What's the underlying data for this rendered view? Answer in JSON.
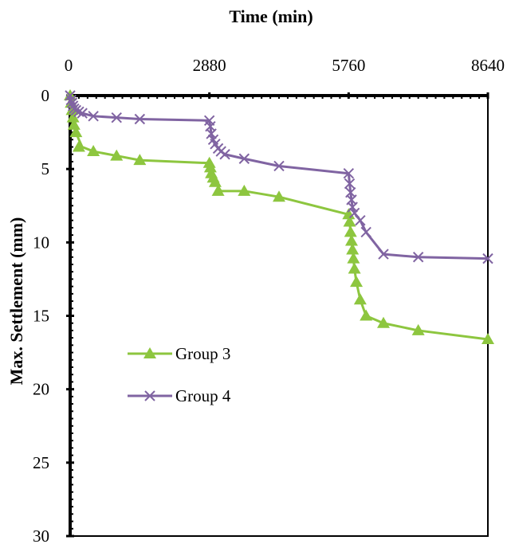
{
  "chart_data": {
    "type": "line",
    "title": "",
    "xlabel": "Time (min)",
    "ylabel": "Max. Settlement (mm)",
    "xlim": [
      0,
      8640
    ],
    "ylim": [
      0,
      30
    ],
    "y_inverted": true,
    "x_axis_position": "top",
    "x_ticks": [
      "0",
      "2880",
      "5760",
      "8640"
    ],
    "y_ticks": [
      "0",
      "5",
      "10",
      "15",
      "20",
      "25",
      "30"
    ],
    "grid": false,
    "legend_position": "lower-left",
    "series": [
      {
        "name": "Group 3",
        "color": "#8dc63f",
        "marker": "triangle",
        "x": [
          0,
          20,
          40,
          60,
          80,
          120,
          180,
          250,
          480,
          960,
          1440,
          2880,
          2900,
          2920,
          2960,
          3000,
          3060,
          3120,
          3200,
          3600,
          4320,
          5760,
          5780,
          5800,
          5820,
          5840,
          5860,
          5880,
          5920,
          6000,
          6120,
          6480,
          7200,
          8640
        ],
        "y": [
          0,
          0.5,
          1.0,
          1.5,
          2.0,
          2.5,
          3.0,
          3.5,
          3.8,
          4.1,
          4.4,
          4.6,
          4.9,
          5.3,
          5.6,
          5.9,
          6.2,
          6.5,
          6.5,
          6.5,
          6.9,
          8.1,
          8.6,
          9.3,
          9.9,
          10.5,
          11.1,
          11.8,
          12.7,
          13.9,
          15.0,
          15.5,
          16.0,
          16.6
        ],
        "marker_x": [
          0,
          20,
          40,
          60,
          80,
          120,
          180,
          480,
          960,
          1440,
          2880,
          2900,
          2920,
          2960,
          3000,
          3060,
          3600,
          4320,
          5760,
          5780,
          5800,
          5820,
          5840,
          5860,
          5880,
          5920,
          6000,
          6120,
          6480,
          7200,
          8640
        ],
        "marker_y": [
          0,
          0.5,
          1.0,
          1.5,
          2.0,
          2.5,
          3.5,
          3.8,
          4.1,
          4.4,
          4.6,
          4.9,
          5.3,
          5.6,
          5.9,
          6.5,
          6.5,
          6.9,
          8.1,
          8.6,
          9.3,
          9.9,
          10.5,
          11.1,
          11.8,
          12.7,
          13.9,
          15.0,
          15.5,
          16.0,
          16.6
        ]
      },
      {
        "name": "Group 4",
        "color": "#8064a2",
        "marker": "x",
        "x": [
          0,
          20,
          40,
          60,
          80,
          120,
          180,
          250,
          480,
          960,
          1440,
          2880,
          2900,
          2920,
          2960,
          3000,
          3060,
          3120,
          3200,
          3600,
          4320,
          5760,
          5780,
          5800,
          5820,
          5840,
          5880,
          6000,
          6120,
          6480,
          7200,
          8640
        ],
        "y": [
          0,
          0.3,
          0.5,
          0.7,
          0.9,
          1.0,
          1.1,
          1.2,
          1.4,
          1.5,
          1.6,
          1.7,
          2.1,
          2.6,
          3.0,
          3.3,
          3.6,
          3.8,
          4.0,
          4.3,
          4.8,
          5.3,
          6.0,
          6.6,
          7.1,
          7.6,
          8.0,
          8.5,
          9.3,
          10.8,
          11.0,
          11.1
        ],
        "marker_x": [
          0,
          20,
          40,
          60,
          80,
          120,
          180,
          250,
          480,
          960,
          1440,
          2880,
          2900,
          2920,
          2960,
          3000,
          3060,
          3120,
          3200,
          3600,
          4320,
          5760,
          5780,
          5800,
          5820,
          5840,
          5880,
          6000,
          6120,
          6480,
          7200,
          8640
        ],
        "marker_y": [
          0,
          0.3,
          0.5,
          0.7,
          0.9,
          1.0,
          1.1,
          1.2,
          1.4,
          1.5,
          1.6,
          1.7,
          2.1,
          2.6,
          3.0,
          3.3,
          3.6,
          3.8,
          4.0,
          4.3,
          4.8,
          5.3,
          6.0,
          6.6,
          7.1,
          7.6,
          8.0,
          8.5,
          9.3,
          10.8,
          11.0,
          11.1
        ]
      }
    ]
  }
}
